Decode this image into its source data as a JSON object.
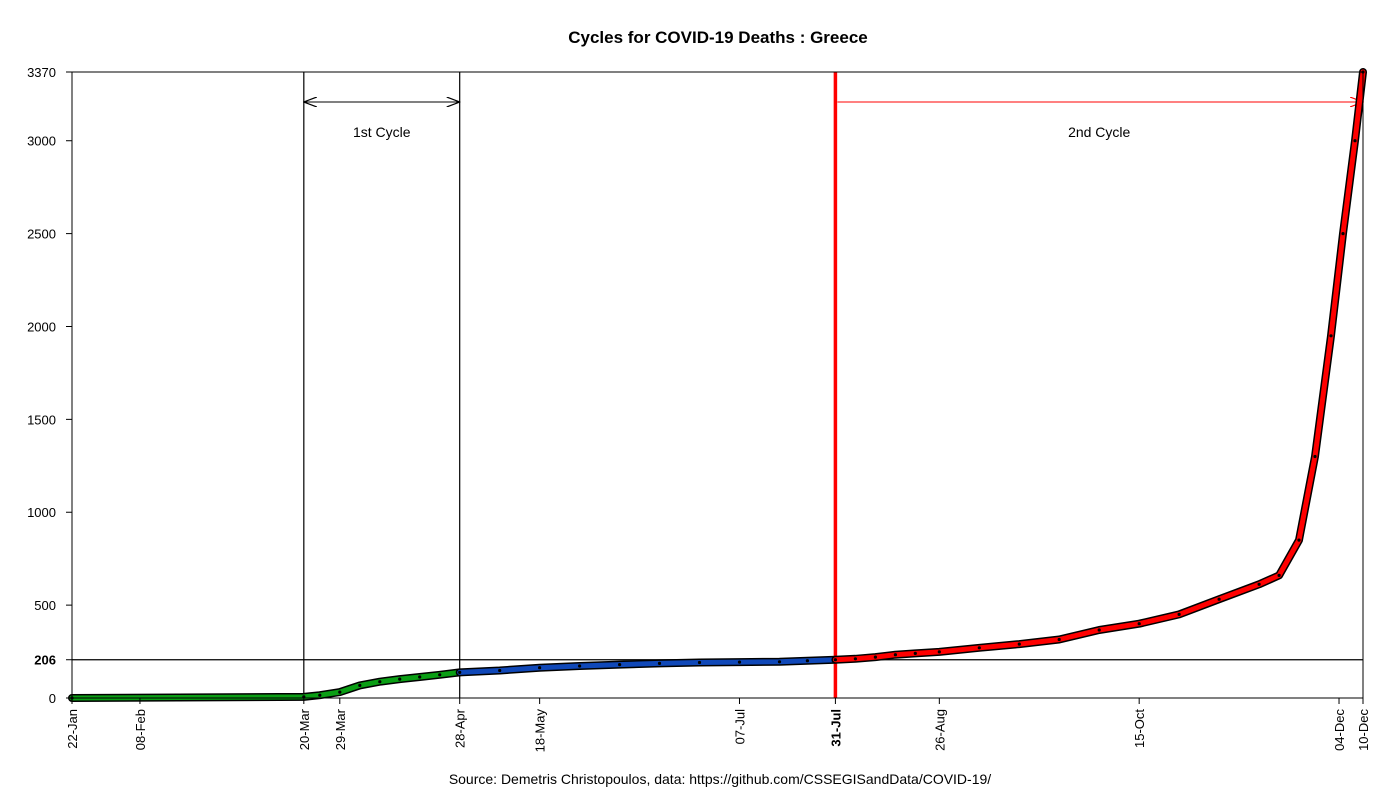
{
  "chart_data": {
    "type": "line",
    "title": "Cycles for COVID-19 Deaths : Greece",
    "source": "Source: Demetris Christopoulos, data: https://github.com/CSSEGISandData/COVID-19/",
    "xlabel": "",
    "ylabel": "",
    "x_range": [
      "2020-01-22",
      "2020-12-10"
    ],
    "ylim": [
      0,
      3370
    ],
    "y_ticks": [
      {
        "value": 0,
        "label": "0",
        "bold": false
      },
      {
        "value": 206,
        "label": "206",
        "bold": true
      },
      {
        "value": 500,
        "label": "500",
        "bold": false
      },
      {
        "value": 1000,
        "label": "1000",
        "bold": false
      },
      {
        "value": 1500,
        "label": "1500",
        "bold": false
      },
      {
        "value": 2000,
        "label": "2000",
        "bold": false
      },
      {
        "value": 2500,
        "label": "2500",
        "bold": false
      },
      {
        "value": 3000,
        "label": "3000",
        "bold": false
      },
      {
        "value": 3370,
        "label": "3370",
        "bold": false
      }
    ],
    "x_ticks": [
      {
        "date": "2020-01-22",
        "label": "22-Jan",
        "bold": false
      },
      {
        "date": "2020-02-08",
        "label": "08-Feb",
        "bold": false
      },
      {
        "date": "2020-03-20",
        "label": "20-Mar",
        "bold": false
      },
      {
        "date": "2020-03-29",
        "label": "29-Mar",
        "bold": false
      },
      {
        "date": "2020-04-28",
        "label": "28-Apr",
        "bold": false
      },
      {
        "date": "2020-05-18",
        "label": "18-May",
        "bold": false
      },
      {
        "date": "2020-07-07",
        "label": "07-Jul",
        "bold": false
      },
      {
        "date": "2020-07-31",
        "label": "31-Jul",
        "bold": true
      },
      {
        "date": "2020-08-26",
        "label": "26-Aug",
        "bold": false
      },
      {
        "date": "2020-10-15",
        "label": "15-Oct",
        "bold": false
      },
      {
        "date": "2020-12-04",
        "label": "04-Dec",
        "bold": false
      },
      {
        "date": "2020-12-10",
        "label": "10-Dec",
        "bold": false
      }
    ],
    "reference_lines": {
      "horizontal": [
        {
          "y": 206,
          "color": "#000000"
        }
      ],
      "vertical": [
        {
          "date": "2020-03-20",
          "color": "#000000"
        },
        {
          "date": "2020-04-28",
          "color": "#000000"
        },
        {
          "date": "2020-07-31",
          "color": "#ff0000"
        }
      ]
    },
    "cycles": [
      {
        "label": "1st Cycle",
        "start": "2020-03-20",
        "end": "2020-04-28",
        "color": "#000000"
      },
      {
        "label": "2nd Cycle",
        "start": "2020-07-31",
        "end": "2020-12-10",
        "color": "#ff0000"
      }
    ],
    "colors": {
      "green": "#0a9e14",
      "blue": "#1048b8",
      "red": "#ff0000",
      "outline": "#000000"
    },
    "series": [
      {
        "segment": "pre-cycle-and-1st-cycle",
        "color": "#0a9e14",
        "points": [
          [
            "2020-01-22",
            0
          ],
          [
            "2020-03-20",
            6
          ],
          [
            "2020-03-24",
            15
          ],
          [
            "2020-03-29",
            32
          ],
          [
            "2020-04-03",
            68
          ],
          [
            "2020-04-08",
            88
          ],
          [
            "2020-04-13",
            102
          ],
          [
            "2020-04-18",
            113
          ],
          [
            "2020-04-23",
            125
          ],
          [
            "2020-04-28",
            138
          ]
        ]
      },
      {
        "segment": "inter-cycle",
        "color": "#1048b8",
        "points": [
          [
            "2020-04-28",
            138
          ],
          [
            "2020-05-08",
            148
          ],
          [
            "2020-05-18",
            163
          ],
          [
            "2020-05-28",
            172
          ],
          [
            "2020-06-07",
            180
          ],
          [
            "2020-06-17",
            186
          ],
          [
            "2020-06-27",
            191
          ],
          [
            "2020-07-07",
            193
          ],
          [
            "2020-07-17",
            195
          ],
          [
            "2020-07-24",
            201
          ],
          [
            "2020-07-31",
            206
          ]
        ]
      },
      {
        "segment": "2nd-cycle",
        "color": "#ff0000",
        "points": [
          [
            "2020-07-31",
            206
          ],
          [
            "2020-08-05",
            211
          ],
          [
            "2020-08-10",
            220
          ],
          [
            "2020-08-15",
            233
          ],
          [
            "2020-08-20",
            240
          ],
          [
            "2020-08-26",
            248
          ],
          [
            "2020-09-05",
            270
          ],
          [
            "2020-09-15",
            290
          ],
          [
            "2020-09-25",
            315
          ],
          [
            "2020-10-05",
            366
          ],
          [
            "2020-10-15",
            400
          ],
          [
            "2020-10-25",
            450
          ],
          [
            "2020-11-04",
            532
          ],
          [
            "2020-11-14",
            612
          ],
          [
            "2020-11-19",
            660
          ],
          [
            "2020-11-24",
            850
          ],
          [
            "2020-11-28",
            1300
          ],
          [
            "2020-12-02",
            1950
          ],
          [
            "2020-12-05",
            2500
          ],
          [
            "2020-12-08",
            3000
          ],
          [
            "2020-12-10",
            3370
          ]
        ]
      }
    ]
  }
}
